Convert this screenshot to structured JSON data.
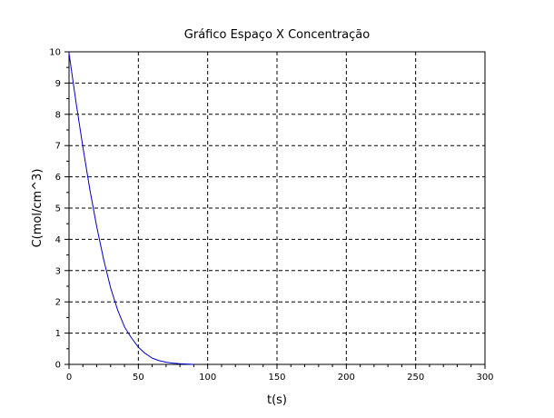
{
  "chart_data": {
    "type": "line",
    "title": "Gráfico Espaço X Concentração",
    "xlabel": "t(s)",
    "ylabel": "C(mol/cm^3)",
    "xlim": [
      0,
      300
    ],
    "ylim": [
      0,
      10
    ],
    "x_ticks": [
      0,
      50,
      100,
      150,
      200,
      250,
      300
    ],
    "y_ticks": [
      0,
      1,
      2,
      3,
      4,
      5,
      6,
      7,
      8,
      9,
      10
    ],
    "grid": true,
    "grid_style": "dashed",
    "legend": "none",
    "series": [
      {
        "color": "#0000cc",
        "x": [
          0,
          5,
          10,
          15,
          20,
          25,
          30,
          35,
          40,
          45,
          50,
          55,
          60,
          65,
          70,
          75,
          80,
          85,
          90
        ],
        "y": [
          9.95,
          8.4,
          6.95,
          5.6,
          4.4,
          3.35,
          2.45,
          1.75,
          1.2,
          0.85,
          0.55,
          0.35,
          0.2,
          0.12,
          0.07,
          0.04,
          0.02,
          0.01,
          0.0
        ]
      }
    ]
  }
}
